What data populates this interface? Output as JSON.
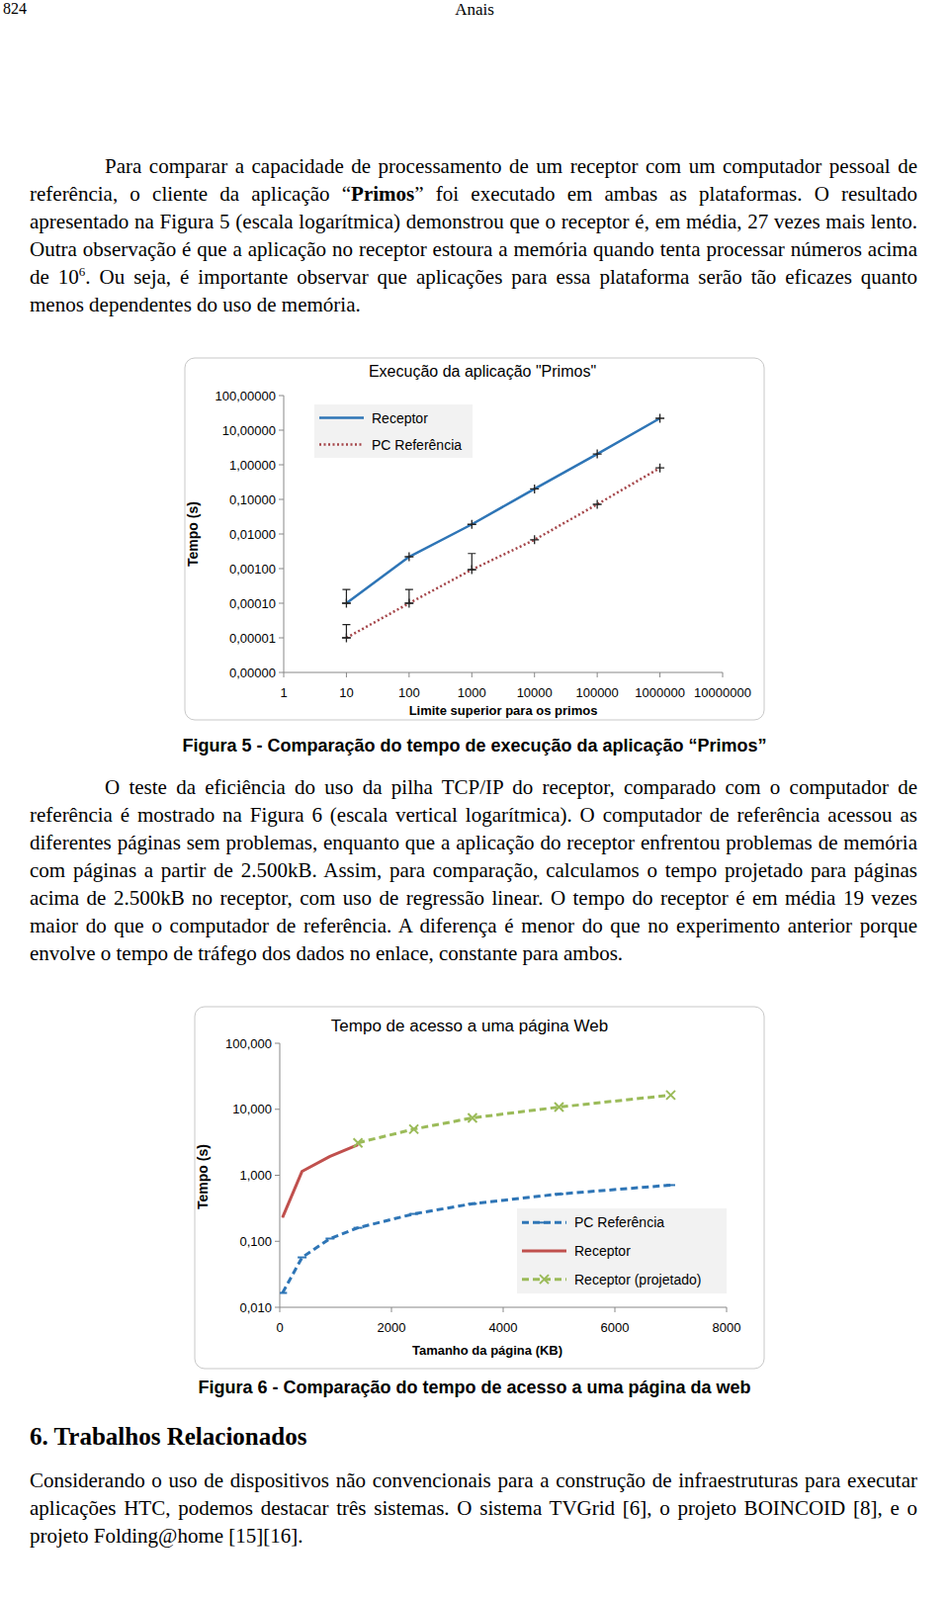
{
  "header": {
    "page_number": "824",
    "title": "Anais"
  },
  "paragraphs": [
    [
      {
        "text": "Para comparar a capacidade de processamento de um receptor com um computador pessoal de referência, o cliente da aplicação “"
      },
      {
        "text": "Primos",
        "style": "bold"
      },
      {
        "text": "” foi executado em ambas as plataformas. O resultado apresentado na Figura 5 (escala logarítmica) demonstrou que o receptor é, em média, 27 vezes mais lento. Outra observação é que a aplicação no receptor estoura a memória quando tenta processar números acima de 10"
      },
      {
        "text": "6",
        "style": "sup"
      },
      {
        "text": ". Ou seja, é importante observar que aplicações para essa plataforma serão tão eficazes quanto menos dependentes do uso de memória."
      }
    ],
    [
      {
        "text": "O teste da eficiência do uso da pilha TCP/IP do receptor, comparado com o computador de referência é mostrado na Figura 6 (escala vertical logarítmica). O computador de referência acessou as diferentes páginas sem problemas, enquanto que a aplicação do receptor enfrentou problemas de memória com páginas a partir de 2.500kB. Assim, para comparação, calculamos o tempo projetado para páginas acima de 2.500kB no receptor, com uso de regressão linear. O tempo do receptor é em média 19 vezes maior do que o computador de referência. A diferença é menor do que no experimento anterior porque envolve o tempo de tráfego dos dados no enlace, constante para ambos."
      }
    ],
    [
      {
        "text": "Considerando o uso de dispositivos não convencionais para a construção de infraestruturas para executar aplicações HTC, podemos destacar três sistemas. O sistema TVGrid [6], o projeto BOINCOID [8], e o projeto Folding@home [15][16]."
      }
    ]
  ],
  "figure_captions": [
    "Figura 5 - Comparação do tempo de execução da aplicação “Primos”",
    "Figura 6 - Comparação do tempo de acesso a uma página da web"
  ],
  "section_heading": "6. Trabalhos Relacionados",
  "chart_data": [
    {
      "type": "line",
      "title": "Execução da aplicação \"Primos\"",
      "x_label": "Limite superior para os primos",
      "y_label": "Tempo (s)",
      "log": true,
      "grid": false,
      "legend": "top-left",
      "x": [
        10,
        100,
        1000,
        10000,
        100000,
        1000000
      ],
      "xlim": [
        1,
        10000000
      ],
      "xticks": [
        1,
        10,
        100,
        1000,
        10000,
        100000,
        1000000,
        10000000
      ],
      "ylim": [
        1e-06,
        100
      ],
      "yticks": [
        {
          "value": 1e-06,
          "label": "0,00000"
        },
        {
          "value": 1e-05,
          "label": "0,00001"
        },
        {
          "value": 0.0001,
          "label": "0,00010"
        },
        {
          "value": 0.001,
          "label": "0,00100"
        },
        {
          "value": 0.01,
          "label": "0,01000"
        },
        {
          "value": 0.1,
          "label": "0,10000"
        },
        {
          "value": 1,
          "label": "1,00000"
        },
        {
          "value": 10,
          "label": "10,00000"
        },
        {
          "value": 100,
          "label": "100,00000"
        }
      ],
      "series": [
        {
          "name": "Receptor",
          "color": "#2e75b6",
          "line_style": "solid",
          "marker": "plus",
          "values": [
            0.0001,
            0.0022,
            0.019,
            0.2,
            2.05,
            22
          ],
          "errors": [
            0.00015,
            null,
            null,
            null,
            null,
            null
          ]
        },
        {
          "name": "PC Referência",
          "color": "#a5464a",
          "line_style": "dotted",
          "marker": "plus",
          "values": [
            1e-05,
            0.0001,
            0.00093,
            0.0068,
            0.072,
            0.81
          ],
          "errors": [
            1.4e-05,
            0.00015,
            0.0018,
            null,
            null,
            null
          ]
        }
      ]
    },
    {
      "type": "line",
      "title": "Tempo de acesso a uma página Web",
      "x_label": "Tamanho da página (KB)",
      "y_label": "Tempo (s)",
      "log": "y",
      "grid": false,
      "legend": "bottom-right",
      "x": [
        50,
        400,
        900,
        1400,
        2400,
        3450,
        5000,
        7000
      ],
      "xlim": [
        0,
        8000
      ],
      "xticks": [
        0,
        2000,
        4000,
        6000,
        8000
      ],
      "ylim": [
        0.01,
        100
      ],
      "yticks": [
        {
          "value": 0.01,
          "label": "0,010"
        },
        {
          "value": 0.1,
          "label": "0,100"
        },
        {
          "value": 1,
          "label": "1,000"
        },
        {
          "value": 10,
          "label": "10,000"
        },
        {
          "value": 100,
          "label": "100,000"
        }
      ],
      "series": [
        {
          "name": "PC Referência",
          "color": "#2e75b6",
          "line_style": "dashed",
          "marker": "dash",
          "values": [
            0.0165,
            0.057,
            0.11,
            0.16,
            0.26,
            0.37,
            0.52,
            0.71
          ]
        },
        {
          "name": "Receptor",
          "color": "#c0504d",
          "line_style": "solid",
          "marker": "none",
          "values": [
            0.23,
            1.15,
            1.93,
            2.9,
            null,
            null,
            null,
            null
          ]
        },
        {
          "name": "Receptor (projetado)",
          "color": "#9bbb59",
          "line_style": "dashed",
          "marker": "x",
          "values": [
            null,
            null,
            null,
            3.1,
            5.0,
            7.4,
            10.8,
            16.4
          ]
        }
      ]
    }
  ]
}
